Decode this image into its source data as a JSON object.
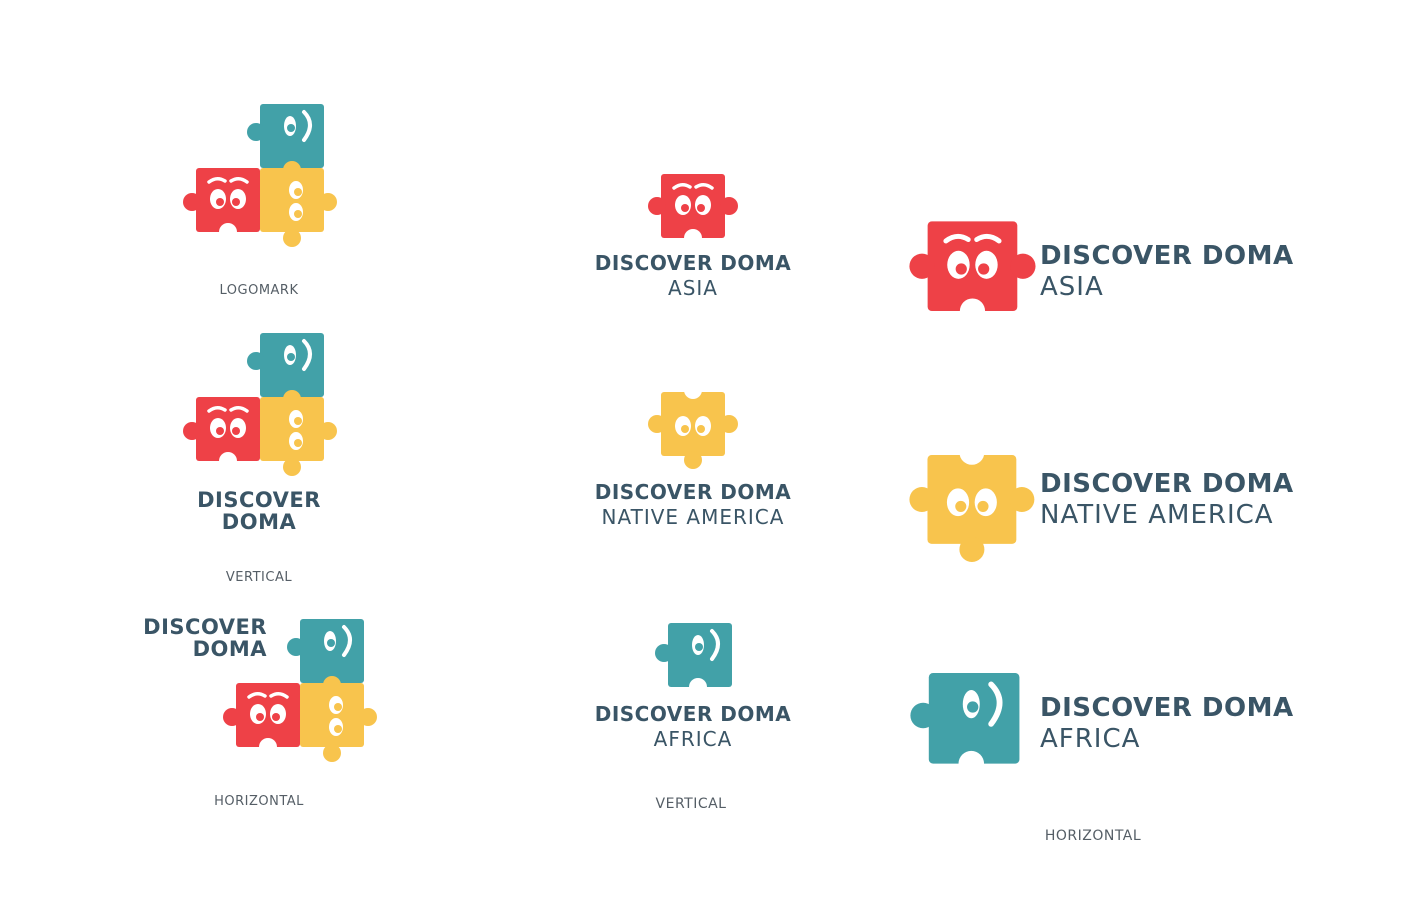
{
  "brand": {
    "word1": "DISCOVER",
    "word2": "DOMA",
    "full": "DISCOVER DOMA"
  },
  "colors": {
    "red": "#ee4147",
    "yellow": "#f8c44d",
    "teal": "#42a1a8",
    "text": "#3a5566",
    "caption": "#555e66"
  },
  "left_column": {
    "logomark_caption": "LOGOMARK",
    "vertical_caption": "VERTICAL",
    "horizontal_caption": "HORIZONTAL"
  },
  "regions": [
    {
      "name": "ASIA",
      "color": "red",
      "icon": "red-puzzle-piece-icon"
    },
    {
      "name": "NATIVE AMERICA",
      "color": "yellow",
      "icon": "yellow-puzzle-piece-icon"
    },
    {
      "name": "AFRICA",
      "color": "teal",
      "icon": "teal-puzzle-piece-icon"
    }
  ],
  "middle_column": {
    "caption": "VERTICAL"
  },
  "right_column": {
    "caption": "HORIZONTAL"
  }
}
